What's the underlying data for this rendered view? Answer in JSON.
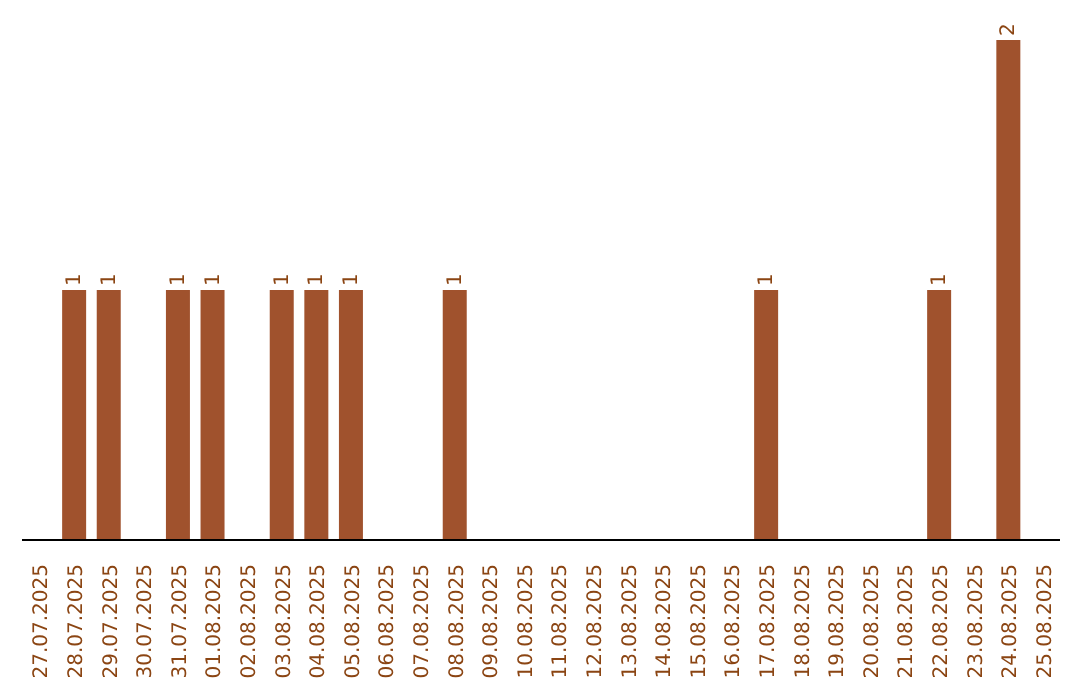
{
  "chart_data": {
    "type": "bar",
    "categories": [
      "27.07.2025",
      "28.07.2025",
      "29.07.2025",
      "30.07.2025",
      "31.07.2025",
      "01.08.2025",
      "02.08.2025",
      "03.08.2025",
      "04.08.2025",
      "05.08.2025",
      "06.08.2025",
      "07.08.2025",
      "08.08.2025",
      "09.08.2025",
      "10.08.2025",
      "11.08.2025",
      "12.08.2025",
      "13.08.2025",
      "14.08.2025",
      "15.08.2025",
      "16.08.2025",
      "17.08.2025",
      "18.08.2025",
      "19.08.2025",
      "20.08.2025",
      "21.08.2025",
      "22.08.2025",
      "23.08.2025",
      "24.08.2025",
      "25.08.2025"
    ],
    "values": [
      0,
      1,
      1,
      0,
      1,
      1,
      0,
      1,
      1,
      1,
      0,
      0,
      1,
      0,
      0,
      0,
      0,
      0,
      0,
      0,
      0,
      1,
      0,
      0,
      0,
      0,
      1,
      0,
      2,
      0
    ],
    "value_labels": [
      null,
      "1",
      "1",
      null,
      "1",
      "1",
      null,
      "1",
      "1",
      "1",
      null,
      null,
      "1",
      null,
      null,
      null,
      null,
      null,
      null,
      null,
      null,
      "1",
      null,
      null,
      null,
      null,
      "1",
      null,
      "2",
      null
    ],
    "color": "#a0522d",
    "grid": false,
    "legend": false
  }
}
